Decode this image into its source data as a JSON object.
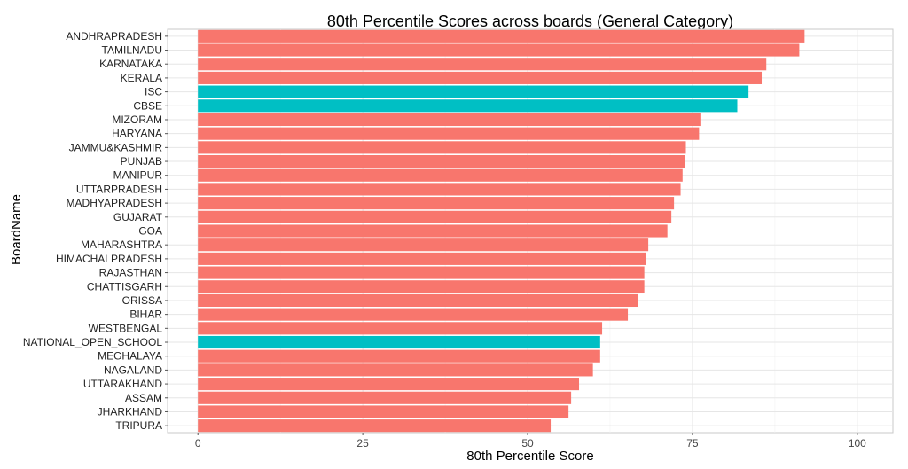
{
  "chart_data": {
    "type": "bar",
    "orientation": "horizontal",
    "title": "80th Percentile Scores across boards (General Category)",
    "xlabel": "80th Percentile Score",
    "ylabel": "BoardName",
    "xlim": [
      0,
      100
    ],
    "x_ticks": [
      0,
      25,
      50,
      75,
      100
    ],
    "grid": true,
    "legend": "none",
    "colors": {
      "state": "#F8766D",
      "national": "#00BFC4"
    },
    "categories": [
      "ANDHRAPRADESH",
      "TAMILNADU",
      "KARNATAKA",
      "KERALA",
      "ISC",
      "CBSE",
      "MIZORAM",
      "HARYANA",
      "JAMMU&KASHMIR",
      "PUNJAB",
      "MANIPUR",
      "UTTARPRADESH",
      "MADHYAPRADESH",
      "GUJARAT",
      "GOA",
      "MAHARASHTRA",
      "HIMACHALPRADESH",
      "RAJASTHAN",
      "CHATTISGARH",
      "ORISSA",
      "BIHAR",
      "WESTBENGAL",
      "NATIONAL_OPEN_SCHOOL",
      "MEGHALAYA",
      "NAGALAND",
      "UTTARAKHAND",
      "ASSAM",
      "JHARKHAND",
      "TRIPURA"
    ],
    "values": [
      92.0,
      91.2,
      86.2,
      85.5,
      83.5,
      81.8,
      76.2,
      76.0,
      74.0,
      73.8,
      73.5,
      73.2,
      72.2,
      71.8,
      71.2,
      68.3,
      68.0,
      67.7,
      67.7,
      66.8,
      65.2,
      61.3,
      61.0,
      61.0,
      59.9,
      57.8,
      56.6,
      56.2,
      53.5
    ],
    "groups": [
      "state",
      "state",
      "state",
      "state",
      "national",
      "national",
      "state",
      "state",
      "state",
      "state",
      "state",
      "state",
      "state",
      "state",
      "state",
      "state",
      "state",
      "state",
      "state",
      "state",
      "state",
      "state",
      "national",
      "state",
      "state",
      "state",
      "state",
      "state",
      "state"
    ]
  }
}
